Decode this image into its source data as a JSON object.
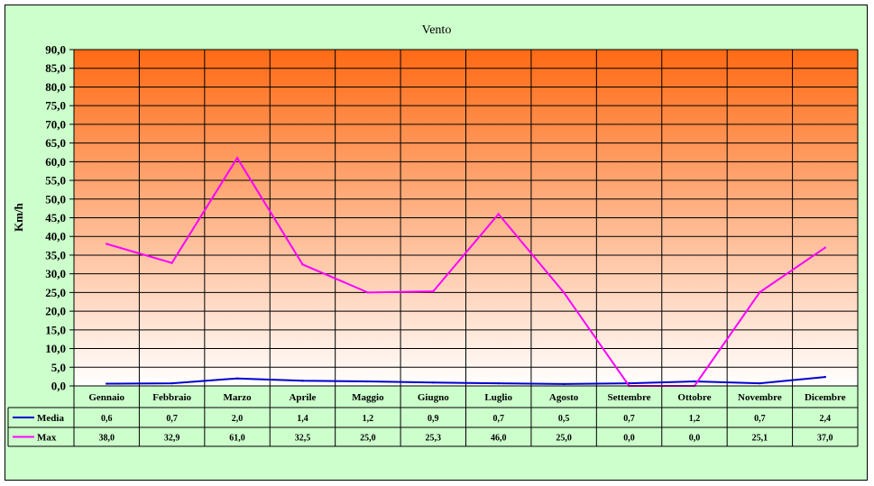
{
  "chart_data": {
    "type": "line",
    "title": "Vento",
    "xlabel": "",
    "ylabel": "Km/h",
    "ylim": [
      0,
      90
    ],
    "ytick_step": 5,
    "ytick_labels": [
      "0,0",
      "5,0",
      "10,0",
      "15,0",
      "20,0",
      "25,0",
      "30,0",
      "35,0",
      "40,0",
      "45,0",
      "50,0",
      "55,0",
      "60,0",
      "65,0",
      "70,0",
      "75,0",
      "80,0",
      "85,0",
      "90,0"
    ],
    "grid": true,
    "legend": "data-table-below",
    "categories": [
      "Gennaio",
      "Febbraio",
      "Marzo",
      "Aprile",
      "Maggio",
      "Giugno",
      "Luglio",
      "Agosto",
      "Settembre",
      "Ottobre",
      "Novembre",
      "Dicembre"
    ],
    "series": [
      {
        "name": "Media",
        "color": "#0000cc",
        "values": [
          0.6,
          0.7,
          2.0,
          1.4,
          1.2,
          0.9,
          0.7,
          0.5,
          0.7,
          1.2,
          0.7,
          2.4
        ],
        "labels": [
          "0,6",
          "0,7",
          "2,0",
          "1,4",
          "1,2",
          "0,9",
          "0,7",
          "0,5",
          "0,7",
          "1,2",
          "0,7",
          "2,4"
        ]
      },
      {
        "name": "Max",
        "color": "#ff00ff",
        "values": [
          38.0,
          32.9,
          61.0,
          32.5,
          25.0,
          25.3,
          46.0,
          25.0,
          0.0,
          0.0,
          25.1,
          37.0
        ],
        "labels": [
          "38,0",
          "32,9",
          "61,0",
          "32,5",
          "25,0",
          "25,3",
          "46,0",
          "25,0",
          "0,0",
          "0,0",
          "25,1",
          "37,0"
        ]
      }
    ],
    "plot_gradient": {
      "top": "#ff6a14",
      "bottom": "#ffffff"
    }
  }
}
